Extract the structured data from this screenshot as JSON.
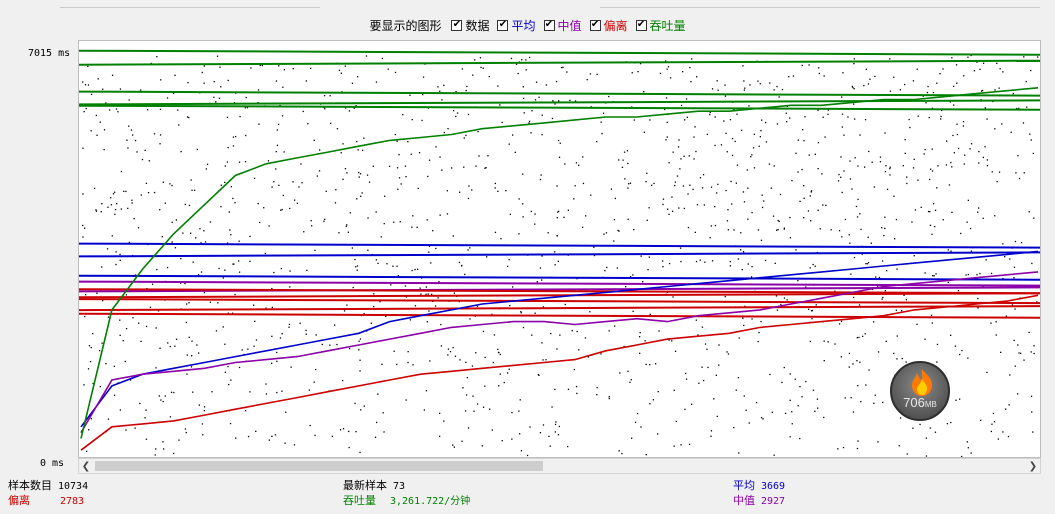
{
  "legend": {
    "title": "要显示的图形",
    "items": [
      {
        "label": "数据",
        "color": "#000000",
        "checked": true
      },
      {
        "label": "平均",
        "color": "#0000cc",
        "checked": true
      },
      {
        "label": "中值",
        "color": "#8b00a8",
        "checked": true
      },
      {
        "label": "偏离",
        "color": "#cc0000",
        "checked": true
      },
      {
        "label": "吞吐量",
        "color": "#008000",
        "checked": true
      }
    ]
  },
  "axis": {
    "y_max_label": "7015 ms",
    "y_min_label": "0 ms"
  },
  "stats": {
    "sample_count_label": "样本数目",
    "sample_count_value": "10734",
    "deviation_label": "偏离",
    "deviation_value": "2783",
    "latest_sample_label": "最新样本",
    "latest_sample_value": "73",
    "throughput_label": "吞吐量",
    "throughput_value": "3,261.722/分钟",
    "average_label": "平均",
    "average_value": "3669",
    "median_label": "中值",
    "median_value": "2927"
  },
  "memory": {
    "value": "706",
    "unit": "MB"
  },
  "colors": {
    "data": "#000000",
    "average": "#0000cc",
    "median": "#8b00a8",
    "deviation": "#cc0000",
    "throughput": "#008000"
  },
  "chart_data": {
    "type": "line",
    "ylim": [
      0,
      7015
    ],
    "series": [
      {
        "name": "平均",
        "color": "#0000cc",
        "values": [
          500,
          1200,
          1400,
          1500,
          1600,
          1700,
          1800,
          1900,
          2000,
          2100,
          2300,
          2400,
          2500,
          2600,
          2650,
          2700,
          2750,
          2800,
          2850,
          2900,
          2950,
          3000,
          3050,
          3100,
          3150,
          3200,
          3250,
          3300,
          3350,
          3400,
          3450,
          3500
        ]
      },
      {
        "name": "中值",
        "color": "#8b00a8",
        "values": [
          400,
          1300,
          1400,
          1450,
          1500,
          1600,
          1650,
          1700,
          1800,
          1900,
          2000,
          2100,
          2200,
          2250,
          2300,
          2300,
          2250,
          2300,
          2350,
          2300,
          2400,
          2450,
          2500,
          2600,
          2700,
          2800,
          2900,
          2950,
          3000,
          3050,
          3100,
          3150
        ]
      },
      {
        "name": "偏离",
        "color": "#cc0000",
        "values": [
          100,
          500,
          550,
          600,
          700,
          800,
          900,
          1000,
          1100,
          1200,
          1300,
          1400,
          1450,
          1500,
          1550,
          1600,
          1650,
          1800,
          1900,
          2000,
          2050,
          2100,
          2200,
          2250,
          2300,
          2350,
          2400,
          2500,
          2550,
          2600,
          2650,
          2750
        ]
      },
      {
        "name": "吞吐量",
        "color": "#008000",
        "values": [
          300,
          2500,
          3200,
          3800,
          4300,
          4800,
          5000,
          5100,
          5200,
          5300,
          5400,
          5450,
          5500,
          5600,
          5650,
          5700,
          5750,
          5800,
          5800,
          5850,
          5900,
          5900,
          5950,
          6000,
          6000,
          6050,
          6100,
          6100,
          6150,
          6200,
          6250,
          6300
        ]
      }
    ],
    "reference_lines": [
      {
        "series": "吞吐量",
        "values": [
          6900,
          6730,
          6200,
          6050,
          5960
        ]
      },
      {
        "series": "平均",
        "values": [
          3600,
          3450,
          3050
        ]
      },
      {
        "series": "中值",
        "values": [
          2950,
          2850
        ]
      },
      {
        "series": "偏离",
        "values": [
          2820,
          2750,
          2650,
          2530,
          2400
        ]
      }
    ],
    "data_points": {
      "series": "数据",
      "count": 10734,
      "ymin": 0,
      "ymax": 7015
    }
  }
}
